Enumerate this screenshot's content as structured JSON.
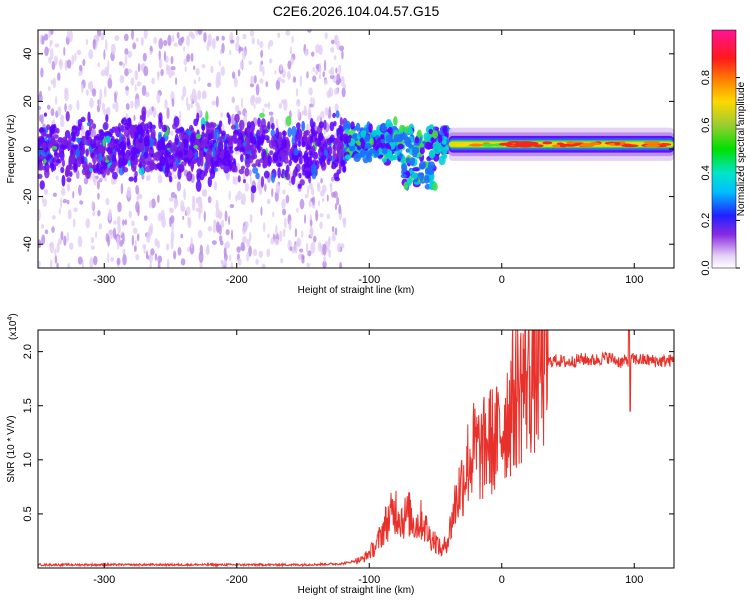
{
  "title": "C2E6.2026.104.04.57.G15",
  "chart_data": [
    {
      "type": "heatmap",
      "name": "spectrogram",
      "xlabel": "Height of straight line (km)",
      "ylabel": "Frequency (Hz)",
      "xlim": [
        -350,
        130
      ],
      "ylim": [
        -50,
        50
      ],
      "xticks": [
        -300,
        -200,
        -100,
        0,
        100
      ],
      "xtick_labels": [
        "-300",
        "-200",
        "-100",
        "0",
        "100"
      ],
      "yticks": [
        -40,
        -20,
        0,
        20,
        40
      ],
      "ytick_labels": [
        "-40",
        "-20",
        "0",
        "20",
        "40"
      ],
      "colorbar": {
        "label": "Normalized spectral amplitude",
        "range": [
          0,
          1
        ],
        "ticks": [
          0.0,
          0.2,
          0.4,
          0.6,
          0.8
        ],
        "tick_labels": [
          "0.0",
          "0.2",
          "0.4",
          "0.6",
          "0.8"
        ]
      },
      "regions": [
        {
          "x_range": [
            -350,
            -118
          ],
          "center_hz": 0,
          "spread_hz": 50,
          "amplitude": 0.15,
          "description": "scattered noise"
        },
        {
          "x_range": [
            -118,
            -40
          ],
          "center_hz": 3,
          "spread_hz": 10,
          "amplitude": 0.35
        },
        {
          "x_range": [
            -40,
            130
          ],
          "center_hz": 2,
          "spread_hz": 3,
          "amplitude": 0.9
        }
      ]
    },
    {
      "type": "line",
      "name": "snr",
      "xlabel": "Height of straight line (km)",
      "ylabel": "SNR (10 * V/V)",
      "scale_label": "(x10",
      "scale_exp": "4",
      "scale_close": ")",
      "xlim": [
        -350,
        130
      ],
      "ylim": [
        0.0,
        2.2
      ],
      "xticks": [
        -300,
        -200,
        -100,
        0,
        100
      ],
      "xtick_labels": [
        "-300",
        "-200",
        "-100",
        "0",
        "100"
      ],
      "yticks": [
        0.5,
        1.0,
        1.5,
        2.0
      ],
      "ytick_labels": [
        "0.5",
        "1.0",
        "1.5",
        "2.0"
      ],
      "color": "#e8312a",
      "series": [
        {
          "name": "SNR",
          "x": [
            -350,
            -300,
            -250,
            -200,
            -150,
            -120,
            -105,
            -95,
            -88,
            -80,
            -75,
            -70,
            -65,
            -60,
            -55,
            -50,
            -45,
            -40,
            -35,
            -30,
            -25,
            -20,
            -15,
            -10,
            -5,
            0,
            5,
            10,
            15,
            20,
            25,
            30,
            35,
            40,
            50,
            60,
            70,
            80,
            90,
            95,
            100,
            110,
            120,
            130
          ],
          "y": [
            0.03,
            0.03,
            0.03,
            0.03,
            0.03,
            0.04,
            0.08,
            0.2,
            0.4,
            0.55,
            0.45,
            0.5,
            0.4,
            0.45,
            0.3,
            0.25,
            0.15,
            0.3,
            0.6,
            0.8,
            1.0,
            1.1,
            1.05,
            1.2,
            1.15,
            1.3,
            1.45,
            1.6,
            1.7,
            1.8,
            1.85,
            1.88,
            1.9,
            1.92,
            1.9,
            1.93,
            1.92,
            1.95,
            1.9,
            1.92,
            1.93,
            1.92,
            1.91,
            1.92
          ]
        }
      ]
    }
  ]
}
